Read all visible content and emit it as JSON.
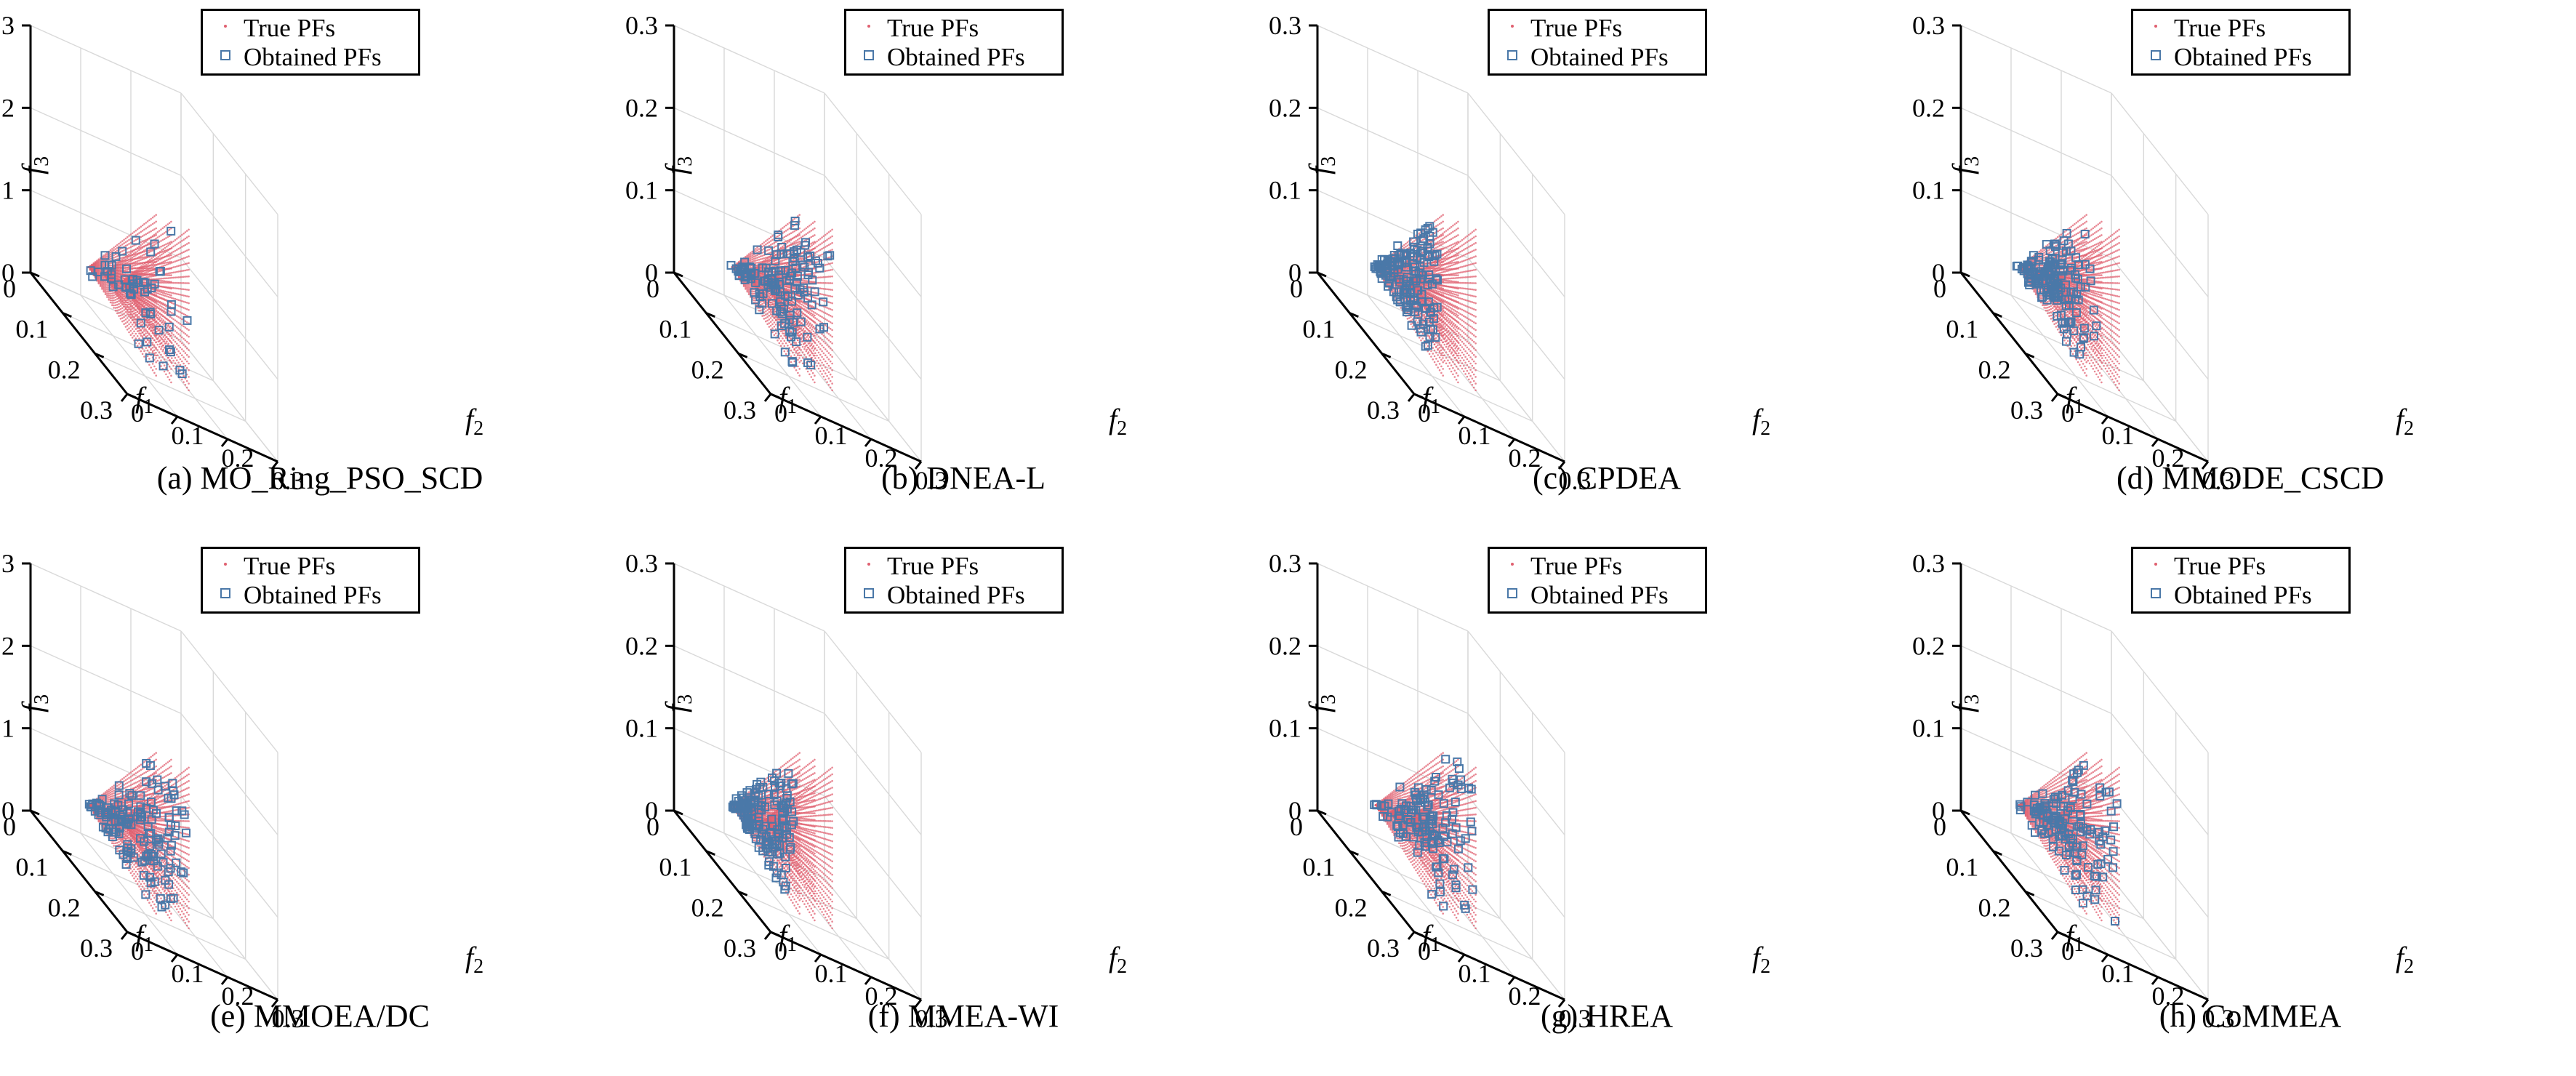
{
  "colors": {
    "true_pf": "#e06070",
    "obtained_pf": "#4a78a8",
    "axis": "#000000",
    "grid": "#d9d9d9"
  },
  "legend": {
    "true_label": "True PFs",
    "obtained_label": "Obtained PFs"
  },
  "axes": {
    "f1_label": "f",
    "f1_sub": "1",
    "f2_label": "f",
    "f2_sub": "2",
    "f3_label": "f",
    "f3_sub": "3",
    "f1_ticks": [
      "0",
      "0.1",
      "0.2",
      "0.3"
    ],
    "f2_ticks": [
      "0",
      "0.1",
      "0.2",
      "0.3"
    ],
    "f3_ticks": [
      "0",
      "0.1",
      "0.2",
      "0.3"
    ]
  },
  "chart_data": [
    {
      "type": "scatter",
      "caption": "(a) MO_Ring_PSO_SCD",
      "xlabel": "f1",
      "ylabel": "f2",
      "zlabel": "f3",
      "xlim": [
        0,
        0.3
      ],
      "ylim": [
        0,
        0.3
      ],
      "zlim": [
        0,
        0.3
      ],
      "grid": true,
      "legend_position": "top",
      "series": [
        {
          "name": "True PFs"
        },
        {
          "name": "Obtained PFs",
          "spread": "sparse",
          "density": 0.35
        }
      ]
    },
    {
      "type": "scatter",
      "caption": "(b) DNEA-L",
      "xlabel": "f1",
      "ylabel": "f2",
      "zlabel": "f3",
      "xlim": [
        0,
        0.3
      ],
      "ylim": [
        0,
        0.3
      ],
      "zlim": [
        0,
        0.3
      ],
      "grid": true,
      "legend_position": "top",
      "series": [
        {
          "name": "True PFs"
        },
        {
          "name": "Obtained PFs",
          "spread": "all",
          "density": 0.85
        }
      ]
    },
    {
      "type": "scatter",
      "caption": "(c) CPDEA",
      "xlabel": "f1",
      "ylabel": "f2",
      "zlabel": "f3",
      "xlim": [
        0,
        0.3
      ],
      "ylim": [
        0,
        0.3
      ],
      "zlim": [
        0,
        0.3
      ],
      "grid": true,
      "legend_position": "top",
      "series": [
        {
          "name": "True PFs"
        },
        {
          "name": "Obtained PFs",
          "spread": "first",
          "density": 1.0
        }
      ]
    },
    {
      "type": "scatter",
      "caption": "(d) MMODE_CSCD",
      "xlabel": "f1",
      "ylabel": "f2",
      "zlabel": "f3",
      "xlim": [
        0,
        0.3
      ],
      "ylim": [
        0,
        0.3
      ],
      "zlim": [
        0,
        0.3
      ],
      "grid": true,
      "legend_position": "top",
      "series": [
        {
          "name": "True PFs"
        },
        {
          "name": "Obtained PFs",
          "spread": "first-two",
          "density": 0.95
        }
      ]
    },
    {
      "type": "scatter",
      "caption": "(e) MMOEA/DC",
      "xlabel": "f1",
      "ylabel": "f2",
      "zlabel": "f3",
      "xlim": [
        0,
        0.3
      ],
      "ylim": [
        0,
        0.3
      ],
      "zlim": [
        0,
        0.3
      ],
      "grid": true,
      "legend_position": "top",
      "series": [
        {
          "name": "True PFs"
        },
        {
          "name": "Obtained PFs",
          "spread": "all",
          "density": 0.9
        }
      ]
    },
    {
      "type": "scatter",
      "caption": "(f) MMEA-WI",
      "xlabel": "f1",
      "ylabel": "f2",
      "zlabel": "f3",
      "xlim": [
        0,
        0.3
      ],
      "ylim": [
        0,
        0.3
      ],
      "zlim": [
        0,
        0.3
      ],
      "grid": true,
      "legend_position": "top",
      "series": [
        {
          "name": "True PFs"
        },
        {
          "name": "Obtained PFs",
          "spread": "first",
          "density": 1.0
        }
      ]
    },
    {
      "type": "scatter",
      "caption": "(g) HREA",
      "xlabel": "f1",
      "ylabel": "f2",
      "zlabel": "f3",
      "xlim": [
        0,
        0.3
      ],
      "ylim": [
        0,
        0.3
      ],
      "zlim": [
        0,
        0.3
      ],
      "grid": true,
      "legend_position": "top",
      "series": [
        {
          "name": "True PFs"
        },
        {
          "name": "Obtained PFs",
          "spread": "all",
          "density": 0.8
        }
      ]
    },
    {
      "type": "scatter",
      "caption": "(h) CoMMEA",
      "xlabel": "f1",
      "ylabel": "f2",
      "zlabel": "f3",
      "xlim": [
        0,
        0.3
      ],
      "ylim": [
        0,
        0.3
      ],
      "zlim": [
        0,
        0.3
      ],
      "grid": true,
      "legend_position": "top",
      "series": [
        {
          "name": "True PFs"
        },
        {
          "name": "Obtained PFs",
          "spread": "all",
          "density": 0.85
        }
      ]
    }
  ]
}
